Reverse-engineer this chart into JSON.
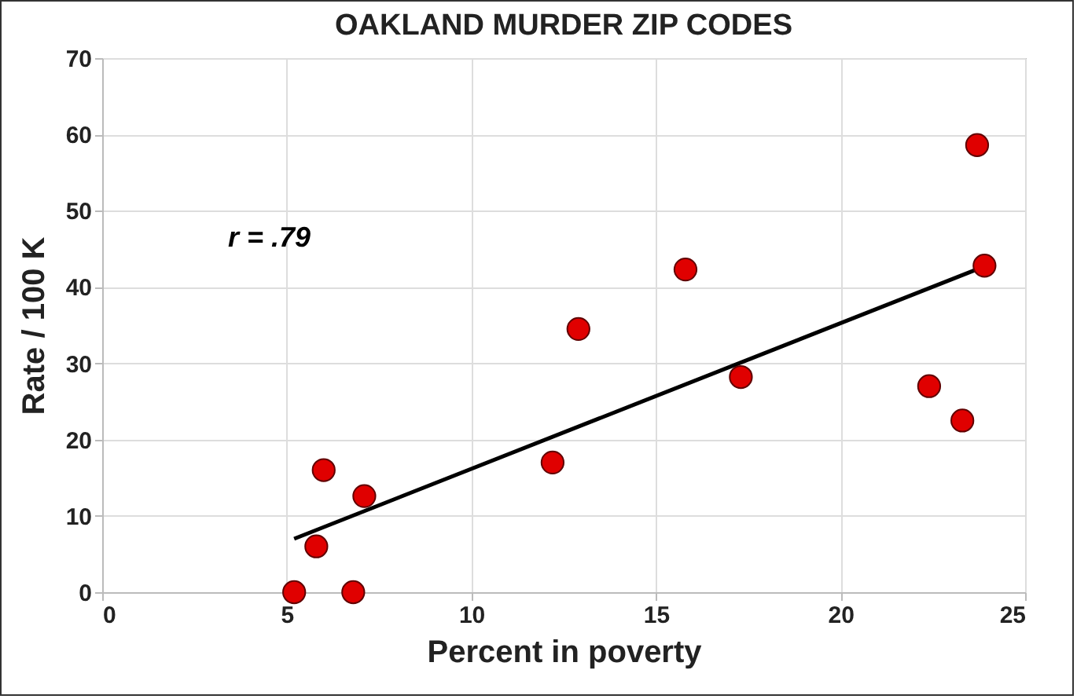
{
  "chart_data": {
    "type": "scatter",
    "title": "OAKLAND MURDER ZIP CODES",
    "xlabel": "Percent in poverty",
    "ylabel": "Rate / 100 K",
    "xlim": [
      0,
      25
    ],
    "xticks": [
      0,
      5,
      10,
      15,
      20,
      25
    ],
    "ylim": [
      0,
      70
    ],
    "yticks": [
      0,
      10,
      20,
      30,
      40,
      50,
      60,
      70
    ],
    "grid": true,
    "series": [
      {
        "marker": "circle",
        "color": "#e00000",
        "x": [
          5.2,
          5.8,
          6.0,
          6.8,
          7.1,
          12.2,
          12.9,
          15.8,
          17.3,
          22.4,
          23.3,
          23.7,
          23.9
        ],
        "values": [
          0,
          6,
          16,
          0,
          12.6,
          17,
          34.5,
          42.3,
          28.2,
          27,
          22.5,
          58.6,
          42.8
        ]
      },
      {
        "type": "line",
        "color": "#000000",
        "x": [
          5.2,
          23.9
        ],
        "values": [
          7,
          42.7
        ]
      }
    ],
    "annotations": [
      "r = .79"
    ]
  }
}
